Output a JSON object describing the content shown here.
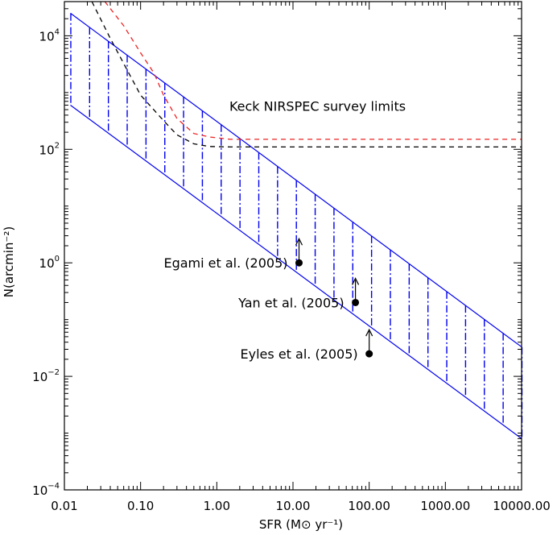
{
  "chart_data": {
    "type": "line",
    "xlabel": "SFR (M⊙ yr⁻¹)",
    "ylabel": "N(arcmin⁻²)",
    "x_scale": "log",
    "y_scale": "log",
    "xlim": [
      0.01,
      10000
    ],
    "ylim": [
      0.0001,
      40000
    ],
    "x_ticks": [
      0.01,
      0.1,
      1,
      10,
      100,
      1000,
      10000
    ],
    "x_tick_labels": [
      "0.01",
      "0.10",
      "1.00",
      "10.00",
      "100.00",
      "1000.00",
      "10000.00"
    ],
    "y_ticks": [
      0.0001,
      0.01,
      1,
      100,
      10000
    ],
    "y_tick_labels": [
      {
        "base": "10",
        "exp": "−4"
      },
      {
        "base": "10",
        "exp": "−2"
      },
      {
        "base": "10",
        "exp": "0"
      },
      {
        "base": "10",
        "exp": "2"
      },
      {
        "base": "10",
        "exp": "4"
      }
    ],
    "band": {
      "color": "#0000ee",
      "upper": {
        "x": [
          0.012,
          10000
        ],
        "y": [
          25000,
          0.033
        ]
      },
      "lower": {
        "x": [
          0.012,
          10000
        ],
        "y": [
          600,
          0.0008
        ]
      }
    },
    "series": [
      {
        "color": "#ee2222",
        "style": "dashed",
        "x": [
          0.034,
          0.06,
          0.1,
          0.15,
          0.2,
          0.3,
          0.5,
          0.8,
          1.5,
          3,
          10,
          10000
        ],
        "y": [
          40000,
          15000,
          5000,
          2200,
          900,
          350,
          190,
          165,
          150,
          150,
          150,
          150
        ]
      },
      {
        "color": "#000000",
        "style": "dashed",
        "x": [
          0.023,
          0.04,
          0.07,
          0.1,
          0.2,
          0.3,
          0.5,
          0.8,
          1.5,
          3,
          10000
        ],
        "y": [
          40000,
          9000,
          2200,
          900,
          320,
          180,
          125,
          112,
          110,
          110,
          110
        ]
      }
    ],
    "annotations": [
      {
        "text": "Keck NIRSPEC survey limits",
        "x": 21,
        "y": 480
      },
      {
        "text": "Egami et al. (2005)",
        "x": 12,
        "y": 1,
        "label": "Egami et al. (2005)"
      },
      {
        "text": "Yan et al. (2005)",
        "x": 66,
        "y": 0.2,
        "label": "Yan et al. (2005)"
      },
      {
        "text": "Eyles et al. (2005)",
        "x": 100,
        "y": 0.025,
        "label": "Eyles et al. (2005)"
      }
    ],
    "lower_limit_points": [
      {
        "name": "Egami et al. (2005)",
        "x": 12,
        "y": 1
      },
      {
        "name": "Yan et al. (2005)",
        "x": 66,
        "y": 0.2
      },
      {
        "name": "Eyles et al. (2005)",
        "x": 100,
        "y": 0.025
      }
    ]
  }
}
